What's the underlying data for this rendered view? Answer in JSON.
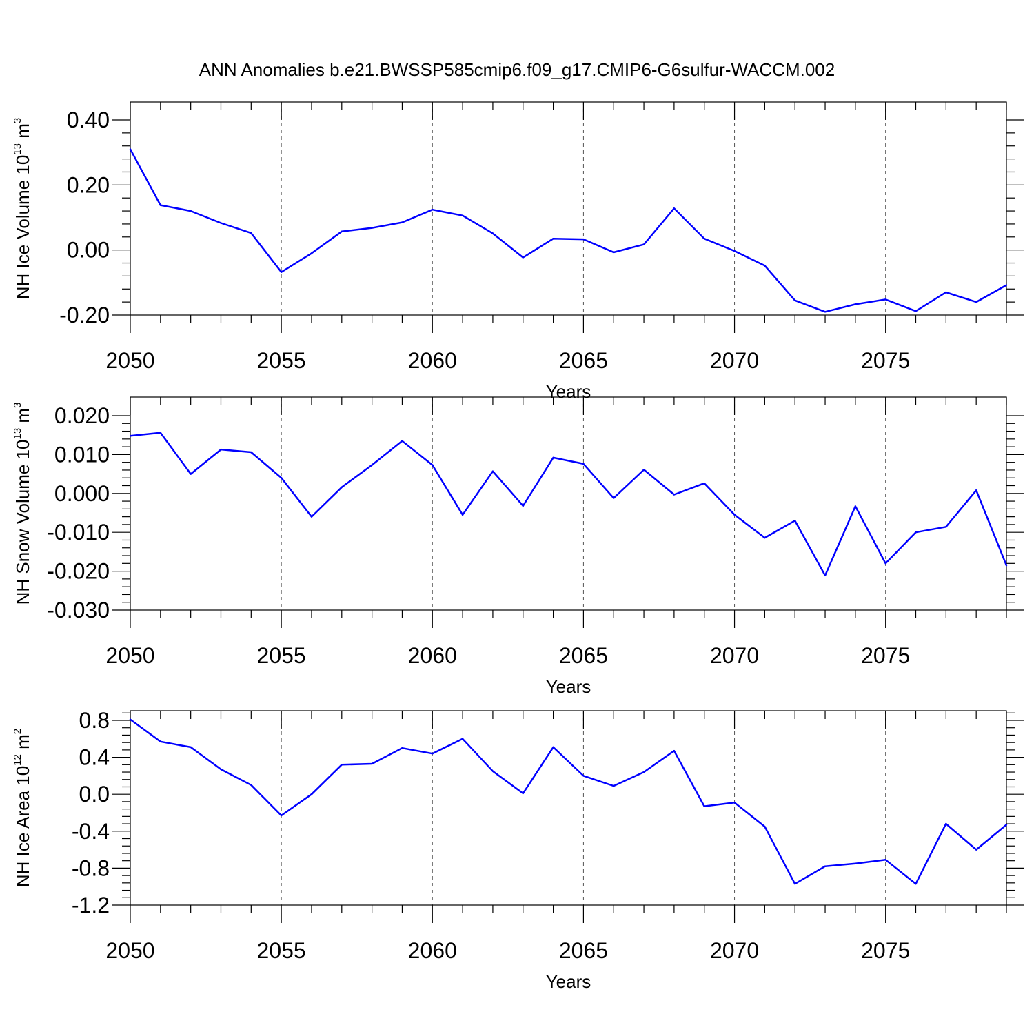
{
  "title": "ANN Anomalies b.e21.BWSSP585cmip6.f09_g17.CMIP6-G6sulfur-WACCM.002",
  "colors": {
    "line": "#0000ff",
    "axis": "#000000",
    "grid": "#555555"
  },
  "chart_data": [
    {
      "type": "line",
      "xlabel": "Years",
      "ylabel": {
        "text": "NH Ice Volume 10",
        "exponent": "13",
        "unit": " m",
        "unit_exponent": "3"
      },
      "xlim": [
        2050,
        2079
      ],
      "ylim": [
        -0.2,
        0.4
      ],
      "xticks": [
        "2050",
        "2055",
        "2060",
        "2065",
        "2070",
        "2075"
      ],
      "yticks": [
        "-0.20",
        "0.00",
        "0.20",
        "0.40"
      ],
      "grid": "dashed vertical at major x ticks",
      "x": [
        2050,
        2051,
        2052,
        2053,
        2054,
        2055,
        2056,
        2057,
        2058,
        2059,
        2060,
        2061,
        2062,
        2063,
        2064,
        2065,
        2066,
        2067,
        2068,
        2069,
        2070,
        2071,
        2072,
        2073,
        2074,
        2075,
        2076,
        2077,
        2078,
        2079
      ],
      "values": [
        0.31,
        0.138,
        0.12,
        0.083,
        0.052,
        -0.068,
        -0.01,
        0.057,
        0.068,
        0.085,
        0.124,
        0.106,
        0.051,
        -0.023,
        0.035,
        0.033,
        -0.007,
        0.017,
        0.128,
        0.035,
        -0.003,
        -0.048,
        -0.155,
        -0.19,
        -0.167,
        -0.152,
        -0.188,
        -0.13,
        -0.16,
        -0.108
      ]
    },
    {
      "type": "line",
      "xlabel": "Years",
      "ylabel": {
        "text": "NH Snow Volume 10",
        "exponent": "13",
        "unit": " m",
        "unit_exponent": "3"
      },
      "xlim": [
        2050,
        2079
      ],
      "ylim": [
        -0.03,
        0.02
      ],
      "xticks": [
        "2050",
        "2055",
        "2060",
        "2065",
        "2070",
        "2075"
      ],
      "yticks": [
        "-0.030",
        "-0.020",
        "-0.010",
        "0.000",
        "0.010",
        "0.020"
      ],
      "grid": "dashed vertical at major x ticks",
      "x": [
        2050,
        2051,
        2052,
        2053,
        2054,
        2055,
        2056,
        2057,
        2058,
        2059,
        2060,
        2061,
        2062,
        2063,
        2064,
        2065,
        2066,
        2067,
        2068,
        2069,
        2070,
        2071,
        2072,
        2073,
        2074,
        2075,
        2076,
        2077,
        2078,
        2079
      ],
      "values": [
        0.0148,
        0.0156,
        0.005,
        0.0113,
        0.0106,
        0.004,
        -0.006,
        0.0016,
        0.0073,
        0.0135,
        0.0073,
        -0.0055,
        0.0057,
        -0.0032,
        0.0092,
        0.0076,
        -0.0012,
        0.0061,
        -0.0003,
        0.0026,
        -0.0055,
        -0.0114,
        -0.007,
        -0.0211,
        -0.0033,
        -0.018,
        -0.01,
        -0.0086,
        0.0008,
        -0.0185
      ]
    },
    {
      "type": "line",
      "xlabel": "Years",
      "ylabel": {
        "text": "NH Ice Area 10",
        "exponent": "12",
        "unit": " m",
        "unit_exponent": "2"
      },
      "xlim": [
        2050,
        2079
      ],
      "ylim": [
        -1.2,
        0.9
      ],
      "xticks": [
        "2050",
        "2055",
        "2060",
        "2065",
        "2070",
        "2075"
      ],
      "yticks": [
        "-1.2",
        "-0.8",
        "-0.4",
        "0.0",
        "0.4",
        "0.8"
      ],
      "grid": "dashed vertical at major x ticks",
      "x": [
        2050,
        2051,
        2052,
        2053,
        2054,
        2055,
        2056,
        2057,
        2058,
        2059,
        2060,
        2061,
        2062,
        2063,
        2064,
        2065,
        2066,
        2067,
        2068,
        2069,
        2070,
        2071,
        2072,
        2073,
        2074,
        2075,
        2076,
        2077,
        2078,
        2079
      ],
      "values": [
        0.81,
        0.57,
        0.51,
        0.27,
        0.1,
        -0.23,
        0.0,
        0.32,
        0.33,
        0.5,
        0.44,
        0.6,
        0.25,
        0.01,
        0.51,
        0.2,
        0.09,
        0.24,
        0.47,
        -0.13,
        -0.09,
        -0.35,
        -0.97,
        -0.78,
        -0.75,
        -0.71,
        -0.97,
        -0.32,
        -0.6,
        -0.33
      ]
    }
  ]
}
